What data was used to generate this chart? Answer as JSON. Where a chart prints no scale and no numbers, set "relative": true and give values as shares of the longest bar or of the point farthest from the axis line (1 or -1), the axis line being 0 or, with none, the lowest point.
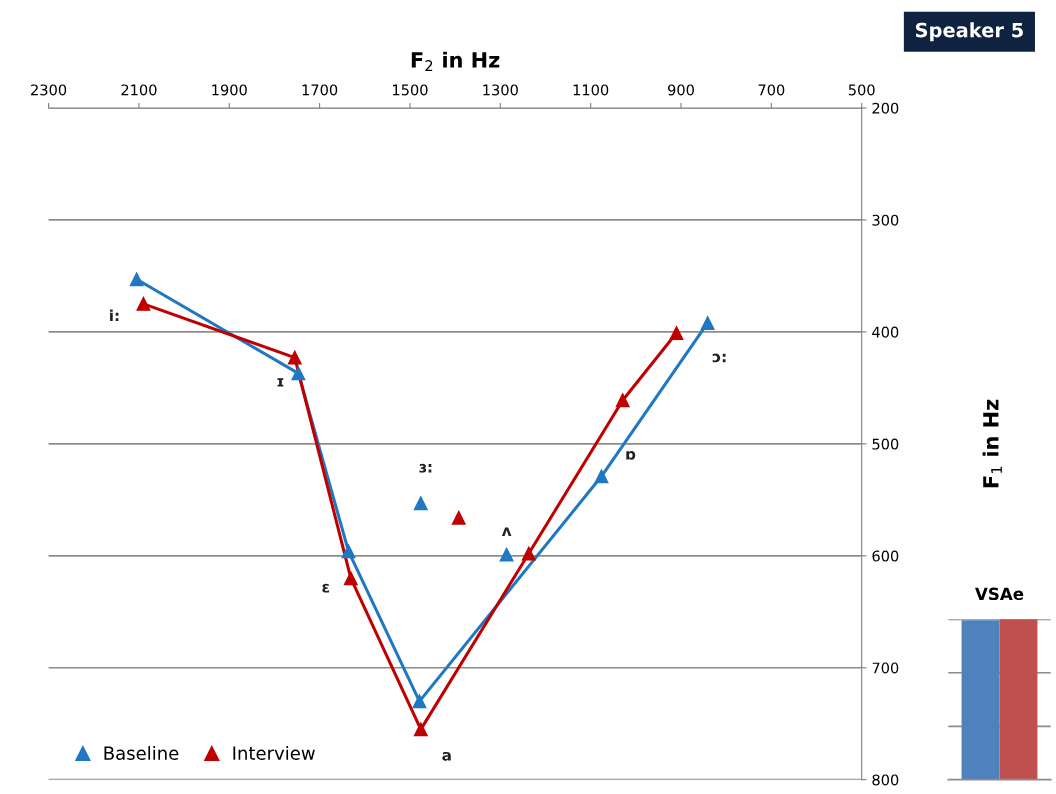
{
  "chart_data": [
    {
      "type": "line",
      "xlabel": "F$_{2}$ in Hz",
      "ylabel": "F$_{1}$ in Hz",
      "xlim": [
        2300,
        500
      ],
      "xticks": [
        2300,
        2100,
        1900,
        1700,
        1500,
        1300,
        1100,
        900,
        700,
        500
      ],
      "ylim": [
        800,
        200
      ],
      "yticks": [
        200,
        300,
        400,
        500,
        600,
        700,
        800
      ],
      "grid": "y",
      "legend": "bottom left",
      "marker": "triangle",
      "line_style": "solid",
      "series": [
        {
          "name": "Baseline",
          "color": "#1f78c1",
          "x": [
            2105,
            1747,
            1636,
            1479,
            1076,
            841
          ],
          "values": [
            353,
            437,
            596,
            730,
            529,
            392
          ]
        },
        {
          "name": "Interview",
          "color": "#c00000",
          "x": [
            2090,
            1755,
            1631,
            1476,
            1237,
            1029,
            910
          ],
          "values": [
            375,
            423,
            620,
            755,
            598,
            461,
            401
          ]
        },
        {
          "type": "scatter",
          "color": "#1f78c1",
          "x": [
            1476,
            1286
          ],
          "values": [
            553,
            599
          ]
        },
        {
          "type": "scatter",
          "color": "#c00000",
          "x": [
            1392
          ],
          "values": [
            566
          ]
        }
      ],
      "annotations": [
        "Speaker 5",
        {
          "text": "i:",
          "x": 2090,
          "y": 375
        },
        {
          "text": "ɪ",
          "x": 1747,
          "y": 437
        },
        {
          "text": "ɛ",
          "x": 1631,
          "y": 620
        },
        {
          "text": "a",
          "x": 1476,
          "y": 755
        },
        {
          "text": "ɜ:",
          "x": 1476,
          "y": 553
        },
        {
          "text": "ʌ",
          "x": 1286,
          "y": 599
        },
        {
          "text": "ɒ",
          "x": 1076,
          "y": 529
        },
        {
          "text": "ɔ:",
          "x": 841,
          "y": 392
        }
      ]
    },
    {
      "type": "bar",
      "title": "VSAe",
      "relative": true,
      "categories": [
        null,
        null
      ],
      "ref_lines": [
        {
          "axis": "y",
          "value": 0.333,
          "color": "#8c8c8c"
        },
        {
          "axis": "y",
          "value": 0.667,
          "color": "#8c8c8c"
        },
        {
          "axis": "y",
          "value": 1,
          "color": "#8c8c8c"
        }
      ],
      "values": [
        0.994,
        1
      ],
      "colors": [
        "#4f81bd",
        "#c0504d"
      ]
    }
  ]
}
